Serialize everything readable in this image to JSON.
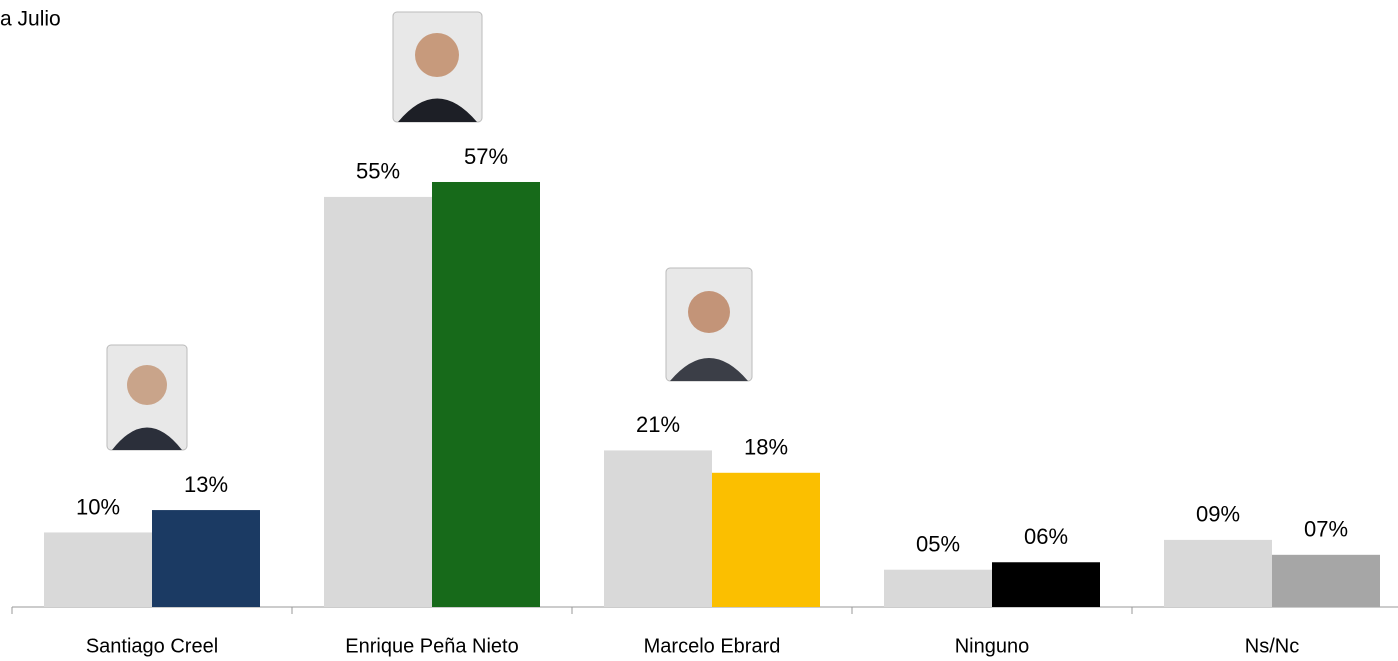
{
  "chart_data": {
    "type": "bar",
    "title": "a Julio",
    "categories": [
      "Santiago Creel",
      "Enrique Peña Nieto",
      "Marcelo Ebrard",
      "Ninguno",
      "Ns/Nc"
    ],
    "series": [
      {
        "color": "#d9d9d9",
        "values": [
          10,
          55,
          21,
          5,
          9
        ],
        "value_labels": [
          "10%",
          "55%",
          "21%",
          "05%",
          "09%"
        ]
      },
      {
        "colors": [
          "#1b3a63",
          "#176a1a",
          "#fbbf00",
          "#000000",
          "#a6a6a6"
        ],
        "values": [
          13,
          57,
          18,
          6,
          7
        ],
        "value_labels": [
          "13%",
          "57%",
          "18%",
          "06%",
          "07%"
        ]
      }
    ],
    "ylim": [
      0,
      80
    ],
    "grid": false
  }
}
